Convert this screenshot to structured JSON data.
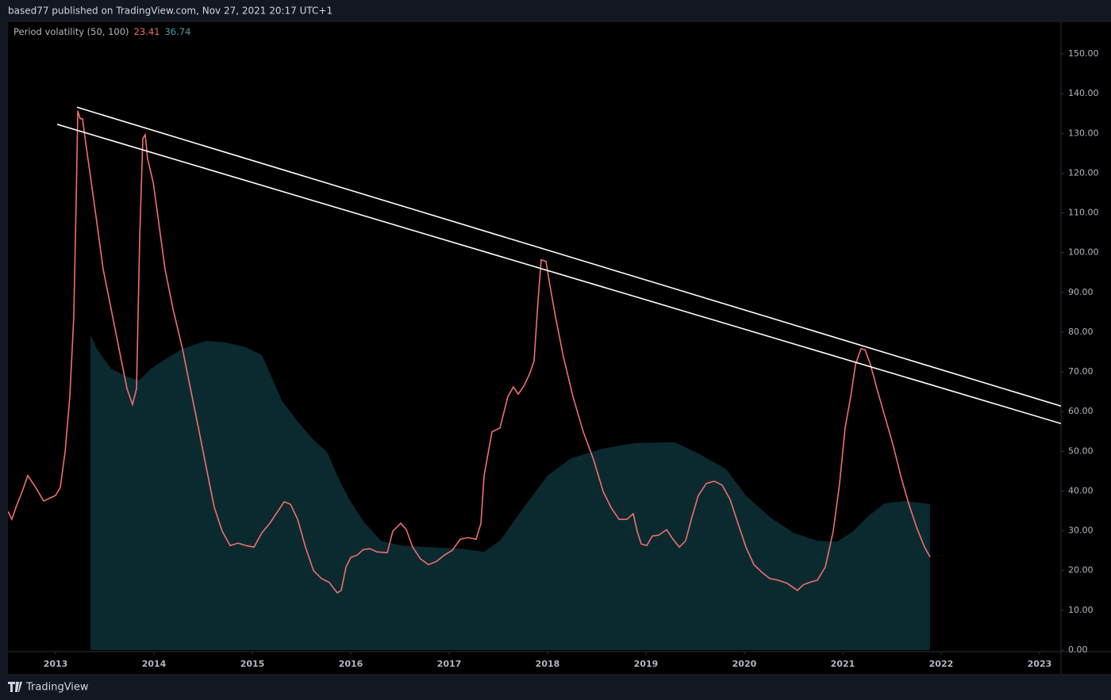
{
  "header": {
    "publisher": "based77 published on TradingView.com, Nov 27, 2021 20:17 UTC+1"
  },
  "footer": {
    "brand": "TradingView"
  },
  "chart_data": {
    "type": "line",
    "indicator": "Period volatility (50, 100)",
    "xlim": [
      2012.516,
      2023.218
    ],
    "xticks": [
      2013,
      2014,
      2015,
      2016,
      2017,
      2018,
      2019,
      2020,
      2021,
      2022,
      2023
    ],
    "ylim": [
      -0.4,
      158.0
    ],
    "yticks": [
      {
        "value": 0,
        "label": "0.00"
      },
      {
        "value": 10,
        "label": "10.00"
      },
      {
        "value": 20,
        "label": "20.00"
      },
      {
        "value": 30,
        "label": "30.00"
      },
      {
        "value": 40,
        "label": "40.00"
      },
      {
        "value": 50,
        "label": "50.00"
      },
      {
        "value": 60,
        "label": "60.00"
      },
      {
        "value": 70,
        "label": "70.00"
      },
      {
        "value": 80,
        "label": "80.00"
      },
      {
        "value": 90,
        "label": "90.00"
      },
      {
        "value": 100,
        "label": "100.00"
      },
      {
        "value": 110,
        "label": "110.00"
      },
      {
        "value": 120,
        "label": "120.00"
      },
      {
        "value": 130,
        "label": "130.00"
      },
      {
        "value": 140,
        "label": "140.00"
      },
      {
        "value": 150,
        "label": "150.00"
      }
    ],
    "series": [
      {
        "color": "#ef6f6c",
        "style": "line",
        "x": [
          2012.516,
          2012.556,
          2012.597,
          2012.661,
          2012.718,
          2012.798,
          2012.879,
          2013.0,
          2013.048,
          2013.097,
          2013.145,
          2013.185,
          2013.21,
          2013.226,
          2013.25,
          2013.274,
          2013.306,
          2013.363,
          2013.419,
          2013.484,
          2013.565,
          2013.645,
          2013.726,
          2013.782,
          2013.823,
          2013.855,
          2013.887,
          2013.911,
          2013.935,
          2013.992,
          2014.048,
          2014.113,
          2014.194,
          2014.29,
          2014.371,
          2014.452,
          2014.532,
          2014.613,
          2014.694,
          2014.774,
          2014.855,
          2014.935,
          2015.016,
          2015.097,
          2015.177,
          2015.258,
          2015.323,
          2015.387,
          2015.46,
          2015.54,
          2015.621,
          2015.702,
          2015.782,
          2015.863,
          2015.903,
          2015.952,
          2016.0,
          2016.065,
          2016.129,
          2016.194,
          2016.266,
          2016.371,
          2016.427,
          2016.508,
          2016.565,
          2016.629,
          2016.71,
          2016.79,
          2016.871,
          2016.952,
          2017.032,
          2017.113,
          2017.194,
          2017.274,
          2017.323,
          2017.355,
          2017.435,
          2017.516,
          2017.597,
          2017.653,
          2017.702,
          2017.758,
          2017.823,
          2017.863,
          2017.903,
          2017.935,
          2017.984,
          2018.024,
          2018.081,
          2018.161,
          2018.258,
          2018.363,
          2018.468,
          2018.565,
          2018.645,
          2018.726,
          2018.806,
          2018.871,
          2018.911,
          2018.952,
          2019.008,
          2019.065,
          2019.129,
          2019.21,
          2019.274,
          2019.339,
          2019.403,
          2019.468,
          2019.532,
          2019.613,
          2019.694,
          2019.774,
          2019.855,
          2019.935,
          2020.016,
          2020.097,
          2020.177,
          2020.258,
          2020.339,
          2020.435,
          2020.54,
          2020.597,
          2020.661,
          2020.742,
          2020.823,
          2020.903,
          2020.968,
          2021.024,
          2021.081,
          2021.129,
          2021.185,
          2021.226,
          2021.282,
          2021.347,
          2021.427,
          2021.508,
          2021.589,
          2021.669,
          2021.75,
          2021.831,
          2021.887
        ],
        "values": [
          34.9,
          32.9,
          35.9,
          39.9,
          43.9,
          40.9,
          37.5,
          38.9,
          40.9,
          49.9,
          63.8,
          83.8,
          113.7,
          135.7,
          133.7,
          133.7,
          127.7,
          117.7,
          107.7,
          95.8,
          85.8,
          75.8,
          65.8,
          61.8,
          65.8,
          103.7,
          128.7,
          129.7,
          123.7,
          117.7,
          107.7,
          95.8,
          85.8,
          75.8,
          65.8,
          55.9,
          45.9,
          35.9,
          29.9,
          26.3,
          26.9,
          26.3,
          25.9,
          29.5,
          31.9,
          34.9,
          37.3,
          36.7,
          32.9,
          25.9,
          20.0,
          18.0,
          17.0,
          14.4,
          15.0,
          20.9,
          23.3,
          23.9,
          25.3,
          25.5,
          24.7,
          24.5,
          29.9,
          31.9,
          30.3,
          25.9,
          22.9,
          21.5,
          22.3,
          23.9,
          25.1,
          27.9,
          28.3,
          27.9,
          31.9,
          43.9,
          54.9,
          55.9,
          63.8,
          66.2,
          64.4,
          66.4,
          69.8,
          72.8,
          87.8,
          98.2,
          97.8,
          91.8,
          83.8,
          73.8,
          63.8,
          54.9,
          47.9,
          39.9,
          35.9,
          32.9,
          32.9,
          34.3,
          29.9,
          26.7,
          26.3,
          28.7,
          28.9,
          30.3,
          27.9,
          25.9,
          27.5,
          33.5,
          38.9,
          41.9,
          42.5,
          41.5,
          37.9,
          31.9,
          25.9,
          21.5,
          19.6,
          18.0,
          17.6,
          16.8,
          15.0,
          16.4,
          17.0,
          17.6,
          20.9,
          29.9,
          41.9,
          55.9,
          63.8,
          71.8,
          75.8,
          75.6,
          71.8,
          65.8,
          58.9,
          51.9,
          43.9,
          36.9,
          30.9,
          25.9,
          23.41
        ]
      },
      {
        "color": "#0a2a30",
        "style": "area",
        "x": [
          2013.355,
          2013.419,
          2013.565,
          2013.726,
          2013.847,
          2013.968,
          2014.129,
          2014.29,
          2014.532,
          2014.734,
          2014.935,
          2015.097,
          2015.177,
          2015.298,
          2015.46,
          2015.621,
          2015.758,
          2015.863,
          2015.984,
          2016.145,
          2016.306,
          2016.508,
          2016.79,
          2017.113,
          2017.355,
          2017.516,
          2017.758,
          2018.0,
          2018.242,
          2018.565,
          2018.887,
          2019.29,
          2019.532,
          2019.815,
          2020.016,
          2020.258,
          2020.5,
          2020.742,
          2020.944,
          2021.105,
          2021.266,
          2021.427,
          2021.629,
          2021.887
        ],
        "values": [
          79.4,
          75.8,
          70.8,
          68.8,
          67.8,
          70.8,
          73.4,
          75.8,
          77.8,
          77.4,
          76.2,
          74.2,
          69.8,
          62.8,
          57.5,
          52.9,
          49.9,
          43.9,
          37.9,
          31.9,
          27.5,
          26.3,
          25.9,
          25.5,
          24.7,
          27.5,
          35.9,
          43.9,
          48.3,
          50.7,
          52.1,
          52.3,
          49.5,
          45.5,
          38.9,
          33.5,
          29.5,
          27.5,
          27.3,
          29.9,
          33.9,
          36.9,
          37.5,
          36.74
        ]
      }
    ],
    "trendlines": [
      {
        "color": "#ffffff",
        "x": [
          2013.218,
          2023.218
        ],
        "y": [
          136.6,
          61.4
        ]
      },
      {
        "color": "#ffffff",
        "x": [
          2013.016,
          2023.218
        ],
        "y": [
          132.3,
          57.0
        ]
      }
    ]
  }
}
